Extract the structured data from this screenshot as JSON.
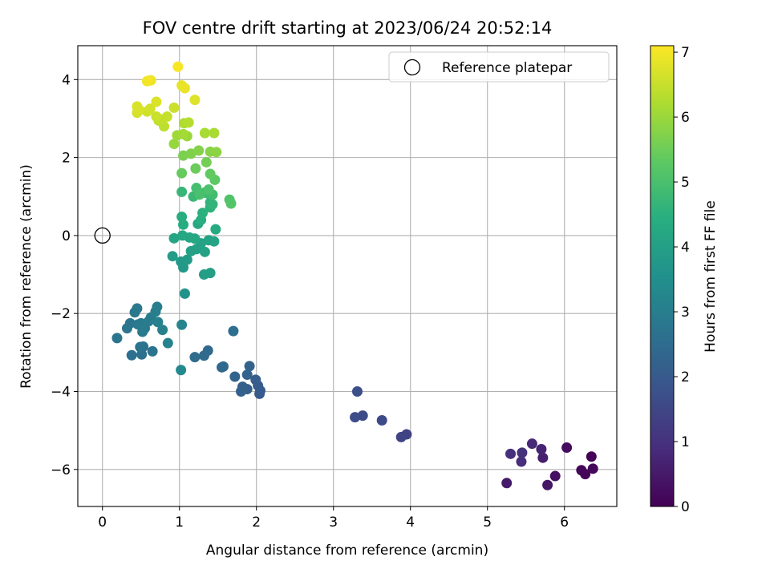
{
  "chart_data": {
    "type": "scatter",
    "title": "FOV centre drift starting at 2023/06/24 20:52:14",
    "xlabel": "Angular distance from reference (arcmin)",
    "ylabel": "Rotation from reference (arcmin)",
    "xlim": [
      -0.32,
      6.68
    ],
    "ylim": [
      -6.95,
      4.87
    ],
    "xticks": [
      0,
      1,
      2,
      3,
      4,
      5,
      6
    ],
    "yticks": [
      -6,
      -4,
      -2,
      0,
      2,
      4
    ],
    "grid": true,
    "legend": {
      "position": "top-right",
      "entries": [
        "Reference platepar"
      ]
    },
    "colorbar": {
      "label": "Hours from first FF file",
      "range": [
        0,
        7.1
      ],
      "ticks": [
        0,
        1,
        2,
        3,
        4,
        5,
        6,
        7
      ],
      "colormap": "viridis"
    },
    "reference_point": {
      "x": 0,
      "y": 0
    },
    "points": [
      {
        "x": 6.35,
        "y": -5.67,
        "c": 0.05
      },
      {
        "x": 6.27,
        "y": -6.12,
        "c": 0.08
      },
      {
        "x": 6.22,
        "y": -6.02,
        "c": 0.1
      },
      {
        "x": 6.37,
        "y": -5.98,
        "c": 0.12
      },
      {
        "x": 6.03,
        "y": -5.44,
        "c": 0.2
      },
      {
        "x": 5.88,
        "y": -6.17,
        "c": 0.3
      },
      {
        "x": 5.78,
        "y": -6.4,
        "c": 0.4
      },
      {
        "x": 5.25,
        "y": -6.35,
        "c": 0.5
      },
      {
        "x": 5.72,
        "y": -5.7,
        "c": 0.6
      },
      {
        "x": 5.7,
        "y": -5.48,
        "c": 0.7
      },
      {
        "x": 5.58,
        "y": -5.34,
        "c": 0.8
      },
      {
        "x": 5.44,
        "y": -5.8,
        "c": 0.9
      },
      {
        "x": 5.3,
        "y": -5.6,
        "c": 0.95
      },
      {
        "x": 5.45,
        "y": -5.57,
        "c": 1.0
      },
      {
        "x": 3.95,
        "y": -5.1,
        "c": 1.4
      },
      {
        "x": 3.88,
        "y": -5.17,
        "c": 1.45
      },
      {
        "x": 3.63,
        "y": -4.74,
        "c": 1.55
      },
      {
        "x": 3.38,
        "y": -4.62,
        "c": 1.6
      },
      {
        "x": 3.28,
        "y": -4.66,
        "c": 1.65
      },
      {
        "x": 3.31,
        "y": -4.0,
        "c": 1.7
      },
      {
        "x": 2.04,
        "y": -4.06,
        "c": 2.0
      },
      {
        "x": 2.05,
        "y": -3.98,
        "c": 2.02
      },
      {
        "x": 2.02,
        "y": -3.85,
        "c": 2.05
      },
      {
        "x": 1.99,
        "y": -3.7,
        "c": 2.08
      },
      {
        "x": 1.88,
        "y": -3.94,
        "c": 2.12
      },
      {
        "x": 1.82,
        "y": -3.88,
        "c": 2.15
      },
      {
        "x": 1.8,
        "y": -4.0,
        "c": 2.18
      },
      {
        "x": 1.88,
        "y": -3.57,
        "c": 2.22
      },
      {
        "x": 1.91,
        "y": -3.35,
        "c": 2.25
      },
      {
        "x": 1.72,
        "y": -3.62,
        "c": 2.28
      },
      {
        "x": 1.55,
        "y": -3.38,
        "c": 2.35
      },
      {
        "x": 1.57,
        "y": -3.36,
        "c": 2.38
      },
      {
        "x": 1.37,
        "y": -2.95,
        "c": 2.42
      },
      {
        "x": 1.32,
        "y": -3.08,
        "c": 2.45
      },
      {
        "x": 1.2,
        "y": -3.12,
        "c": 2.5
      },
      {
        "x": 1.7,
        "y": -2.45,
        "c": 2.55
      },
      {
        "x": 0.38,
        "y": -3.07,
        "c": 2.58
      },
      {
        "x": 0.51,
        "y": -3.05,
        "c": 2.62
      },
      {
        "x": 0.53,
        "y": -2.85,
        "c": 2.65
      },
      {
        "x": 0.49,
        "y": -2.86,
        "c": 2.68
      },
      {
        "x": 0.65,
        "y": -2.97,
        "c": 2.7
      },
      {
        "x": 0.19,
        "y": -2.63,
        "c": 2.72
      },
      {
        "x": 0.32,
        "y": -2.38,
        "c": 2.75
      },
      {
        "x": 0.36,
        "y": -2.25,
        "c": 2.78
      },
      {
        "x": 0.42,
        "y": -1.97,
        "c": 2.8
      },
      {
        "x": 0.45,
        "y": -1.87,
        "c": 2.82
      },
      {
        "x": 0.46,
        "y": -2.28,
        "c": 2.85
      },
      {
        "x": 0.5,
        "y": -2.25,
        "c": 2.88
      },
      {
        "x": 0.52,
        "y": -2.47,
        "c": 2.9
      },
      {
        "x": 0.55,
        "y": -2.38,
        "c": 2.92
      },
      {
        "x": 0.6,
        "y": -2.2,
        "c": 2.95
      },
      {
        "x": 0.63,
        "y": -2.1,
        "c": 2.98
      },
      {
        "x": 0.69,
        "y": -1.95,
        "c": 3.0
      },
      {
        "x": 0.71,
        "y": -1.83,
        "c": 3.02
      },
      {
        "x": 0.72,
        "y": -2.22,
        "c": 3.05
      },
      {
        "x": 0.78,
        "y": -2.42,
        "c": 3.1
      },
      {
        "x": 0.85,
        "y": -2.76,
        "c": 3.15
      },
      {
        "x": 1.03,
        "y": -2.29,
        "c": 3.22
      },
      {
        "x": 1.02,
        "y": -3.45,
        "c": 3.28
      },
      {
        "x": 1.07,
        "y": -1.49,
        "c": 3.6
      },
      {
        "x": 1.05,
        "y": -0.82,
        "c": 3.75
      },
      {
        "x": 1.02,
        "y": -0.67,
        "c": 3.8
      },
      {
        "x": 1.1,
        "y": -0.62,
        "c": 3.85
      },
      {
        "x": 0.91,
        "y": -0.53,
        "c": 3.9
      },
      {
        "x": 1.32,
        "y": -1.0,
        "c": 3.95
      },
      {
        "x": 1.4,
        "y": -0.96,
        "c": 3.98
      },
      {
        "x": 1.15,
        "y": -0.4,
        "c": 4.0
      },
      {
        "x": 1.22,
        "y": -0.35,
        "c": 4.02
      },
      {
        "x": 1.33,
        "y": -0.42,
        "c": 4.05
      },
      {
        "x": 1.28,
        "y": -0.2,
        "c": 4.08
      },
      {
        "x": 1.38,
        "y": -0.12,
        "c": 4.1
      },
      {
        "x": 1.45,
        "y": -0.15,
        "c": 4.12
      },
      {
        "x": 0.93,
        "y": -0.07,
        "c": 4.15
      },
      {
        "x": 1.04,
        "y": 0.0,
        "c": 4.18
      },
      {
        "x": 1.13,
        "y": -0.05,
        "c": 4.2
      },
      {
        "x": 1.2,
        "y": -0.08,
        "c": 4.22
      },
      {
        "x": 1.24,
        "y": 0.3,
        "c": 4.25
      },
      {
        "x": 1.47,
        "y": 0.16,
        "c": 4.3
      },
      {
        "x": 1.05,
        "y": 0.28,
        "c": 4.35
      },
      {
        "x": 1.03,
        "y": 0.48,
        "c": 4.4
      },
      {
        "x": 1.28,
        "y": 0.4,
        "c": 4.45
      },
      {
        "x": 1.3,
        "y": 0.58,
        "c": 4.5
      },
      {
        "x": 1.4,
        "y": 0.72,
        "c": 4.55
      },
      {
        "x": 1.4,
        "y": 0.85,
        "c": 4.6
      },
      {
        "x": 1.43,
        "y": 0.8,
        "c": 4.65
      },
      {
        "x": 1.03,
        "y": 1.12,
        "c": 4.7
      },
      {
        "x": 1.18,
        "y": 1.0,
        "c": 4.75
      },
      {
        "x": 1.33,
        "y": 1.1,
        "c": 4.8
      },
      {
        "x": 1.37,
        "y": 1.08,
        "c": 4.85
      },
      {
        "x": 1.43,
        "y": 1.05,
        "c": 4.9
      },
      {
        "x": 1.22,
        "y": 1.22,
        "c": 4.95
      },
      {
        "x": 1.26,
        "y": 1.05,
        "c": 5.0
      },
      {
        "x": 1.38,
        "y": 1.18,
        "c": 5.05
      },
      {
        "x": 1.65,
        "y": 0.92,
        "c": 5.1
      },
      {
        "x": 1.67,
        "y": 0.82,
        "c": 5.15
      },
      {
        "x": 1.46,
        "y": 1.43,
        "c": 5.3
      },
      {
        "x": 1.4,
        "y": 1.58,
        "c": 5.35
      },
      {
        "x": 1.03,
        "y": 1.6,
        "c": 5.4
      },
      {
        "x": 1.21,
        "y": 1.72,
        "c": 5.45
      },
      {
        "x": 1.35,
        "y": 1.88,
        "c": 5.55
      },
      {
        "x": 1.05,
        "y": 2.05,
        "c": 5.65
      },
      {
        "x": 1.15,
        "y": 2.1,
        "c": 5.7
      },
      {
        "x": 1.25,
        "y": 2.18,
        "c": 5.75
      },
      {
        "x": 1.4,
        "y": 2.15,
        "c": 5.8
      },
      {
        "x": 1.48,
        "y": 2.14,
        "c": 5.85
      },
      {
        "x": 0.93,
        "y": 2.35,
        "c": 5.95
      },
      {
        "x": 1.1,
        "y": 2.55,
        "c": 6.0
      },
      {
        "x": 0.97,
        "y": 2.57,
        "c": 6.05
      },
      {
        "x": 1.05,
        "y": 2.6,
        "c": 6.1
      },
      {
        "x": 1.33,
        "y": 2.63,
        "c": 6.15
      },
      {
        "x": 1.45,
        "y": 2.63,
        "c": 6.18
      },
      {
        "x": 1.06,
        "y": 2.88,
        "c": 6.25
      },
      {
        "x": 1.12,
        "y": 2.9,
        "c": 6.3
      },
      {
        "x": 0.8,
        "y": 2.8,
        "c": 6.38
      },
      {
        "x": 0.73,
        "y": 2.95,
        "c": 6.42
      },
      {
        "x": 0.78,
        "y": 2.98,
        "c": 6.45
      },
      {
        "x": 0.84,
        "y": 3.05,
        "c": 6.48
      },
      {
        "x": 0.7,
        "y": 3.05,
        "c": 6.52
      },
      {
        "x": 0.93,
        "y": 3.28,
        "c": 6.55
      },
      {
        "x": 0.58,
        "y": 3.18,
        "c": 6.6
      },
      {
        "x": 0.62,
        "y": 3.25,
        "c": 6.62
      },
      {
        "x": 0.45,
        "y": 3.15,
        "c": 6.65
      },
      {
        "x": 0.48,
        "y": 3.22,
        "c": 6.68
      },
      {
        "x": 0.45,
        "y": 3.31,
        "c": 6.7
      },
      {
        "x": 0.7,
        "y": 3.43,
        "c": 6.72
      },
      {
        "x": 1.2,
        "y": 3.48,
        "c": 6.75
      },
      {
        "x": 1.03,
        "y": 3.85,
        "c": 6.85
      },
      {
        "x": 1.07,
        "y": 3.78,
        "c": 6.88
      },
      {
        "x": 0.6,
        "y": 3.97,
        "c": 6.92
      },
      {
        "x": 0.63,
        "y": 3.98,
        "c": 6.95
      },
      {
        "x": 0.58,
        "y": 3.96,
        "c": 6.98
      },
      {
        "x": 0.98,
        "y": 4.33,
        "c": 7.05
      }
    ]
  }
}
